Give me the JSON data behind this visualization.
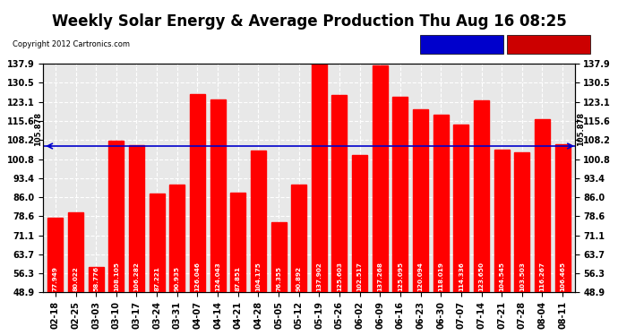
{
  "title": "Weekly Solar Energy & Average Production Thu Aug 16 08:25",
  "copyright": "Copyright 2012 Cartronics.com",
  "categories": [
    "02-18",
    "02-25",
    "03-03",
    "03-10",
    "03-17",
    "03-24",
    "03-31",
    "04-07",
    "04-14",
    "04-21",
    "04-28",
    "05-05",
    "05-12",
    "05-19",
    "05-26",
    "06-02",
    "06-09",
    "06-16",
    "06-23",
    "06-30",
    "07-07",
    "07-14",
    "07-21",
    "07-28",
    "08-04",
    "08-11"
  ],
  "values": [
    77.949,
    80.022,
    58.776,
    108.105,
    106.282,
    87.221,
    90.935,
    126.046,
    124.043,
    87.851,
    104.175,
    76.355,
    90.892,
    137.902,
    125.603,
    102.517,
    137.268,
    125.095,
    120.094,
    118.019,
    114.336,
    123.65,
    104.545,
    103.503,
    116.267,
    106.465
  ],
  "average_value": 105.878,
  "bar_color": "#ff0000",
  "average_line_color": "#0000cc",
  "background_color": "#ffffff",
  "plot_bg_color": "#e8e8e8",
  "grid_color": "#ffffff",
  "ylim_min": 48.9,
  "ylim_max": 137.9,
  "yticks": [
    48.9,
    56.3,
    63.7,
    71.1,
    78.6,
    86.0,
    93.4,
    100.8,
    108.2,
    115.6,
    123.1,
    130.5,
    137.9
  ],
  "legend_average_color": "#0000cc",
  "legend_weekly_color": "#cc0000",
  "bar_width": 0.75,
  "title_fontsize": 12,
  "tick_fontsize": 7,
  "value_fontsize": 5.2,
  "avg_label": "105.878"
}
